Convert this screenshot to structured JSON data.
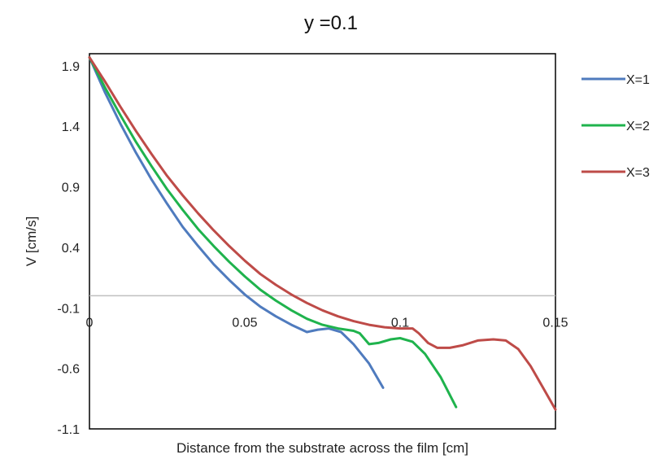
{
  "chart_data": {
    "type": "line",
    "title": "y =0.1",
    "xlabel": "Distance from the substrate across the film [cm]",
    "ylabel": "V [cm/s]",
    "xlim": [
      0,
      0.15
    ],
    "ylim": [
      -1.1,
      2.0
    ],
    "x_ticks": [
      "0",
      "0.05",
      "0.1",
      "0.15"
    ],
    "x_tick_values": [
      0,
      0.05,
      0.1,
      0.15
    ],
    "y_ticks": [
      "1.9",
      "1.4",
      "0.9",
      "0.4",
      "-0.1",
      "-0.6",
      "-1.1"
    ],
    "y_tick_values": [
      1.9,
      1.4,
      0.9,
      0.4,
      -0.1,
      -0.6,
      -1.1
    ],
    "zero_line": true,
    "grid": false,
    "legend_position": "right",
    "series": [
      {
        "name": "X=1",
        "color": "#4F7BBE",
        "points": [
          [
            0,
            1.97
          ],
          [
            0.005,
            1.68
          ],
          [
            0.01,
            1.42
          ],
          [
            0.015,
            1.18
          ],
          [
            0.02,
            0.96
          ],
          [
            0.025,
            0.76
          ],
          [
            0.03,
            0.57
          ],
          [
            0.035,
            0.41
          ],
          [
            0.04,
            0.26
          ],
          [
            0.045,
            0.13
          ],
          [
            0.05,
            0.01
          ],
          [
            0.055,
            -0.09
          ],
          [
            0.06,
            -0.17
          ],
          [
            0.065,
            -0.24
          ],
          [
            0.07,
            -0.3
          ],
          [
            0.0735,
            -0.28
          ],
          [
            0.077,
            -0.27
          ],
          [
            0.081,
            -0.3
          ],
          [
            0.085,
            -0.4
          ],
          [
            0.09,
            -0.56
          ],
          [
            0.0945,
            -0.76
          ]
        ]
      },
      {
        "name": "X=2",
        "color": "#1FB34D",
        "points": [
          [
            0,
            1.97
          ],
          [
            0.005,
            1.72
          ],
          [
            0.01,
            1.49
          ],
          [
            0.015,
            1.27
          ],
          [
            0.02,
            1.07
          ],
          [
            0.025,
            0.88
          ],
          [
            0.03,
            0.71
          ],
          [
            0.035,
            0.55
          ],
          [
            0.04,
            0.41
          ],
          [
            0.045,
            0.28
          ],
          [
            0.05,
            0.16
          ],
          [
            0.055,
            0.05
          ],
          [
            0.06,
            -0.04
          ],
          [
            0.065,
            -0.12
          ],
          [
            0.07,
            -0.19
          ],
          [
            0.075,
            -0.24
          ],
          [
            0.08,
            -0.27
          ],
          [
            0.085,
            -0.29
          ],
          [
            0.087,
            -0.31
          ],
          [
            0.09,
            -0.4
          ],
          [
            0.093,
            -0.39
          ],
          [
            0.097,
            -0.36
          ],
          [
            0.1,
            -0.35
          ],
          [
            0.104,
            -0.38
          ],
          [
            0.108,
            -0.48
          ],
          [
            0.113,
            -0.67
          ],
          [
            0.118,
            -0.92
          ]
        ]
      },
      {
        "name": "X=3",
        "color": "#BE4B48",
        "points": [
          [
            0,
            1.97
          ],
          [
            0.005,
            1.77
          ],
          [
            0.01,
            1.56
          ],
          [
            0.015,
            1.36
          ],
          [
            0.02,
            1.17
          ],
          [
            0.025,
            0.99
          ],
          [
            0.03,
            0.83
          ],
          [
            0.035,
            0.68
          ],
          [
            0.04,
            0.54
          ],
          [
            0.045,
            0.41
          ],
          [
            0.05,
            0.29
          ],
          [
            0.055,
            0.18
          ],
          [
            0.06,
            0.09
          ],
          [
            0.065,
            0.01
          ],
          [
            0.07,
            -0.06
          ],
          [
            0.075,
            -0.12
          ],
          [
            0.08,
            -0.17
          ],
          [
            0.085,
            -0.21
          ],
          [
            0.09,
            -0.24
          ],
          [
            0.095,
            -0.26
          ],
          [
            0.1,
            -0.27
          ],
          [
            0.104,
            -0.27
          ],
          [
            0.106,
            -0.31
          ],
          [
            0.109,
            -0.39
          ],
          [
            0.112,
            -0.43
          ],
          [
            0.116,
            -0.43
          ],
          [
            0.12,
            -0.41
          ],
          [
            0.125,
            -0.37
          ],
          [
            0.13,
            -0.36
          ],
          [
            0.134,
            -0.37
          ],
          [
            0.138,
            -0.44
          ],
          [
            0.142,
            -0.58
          ],
          [
            0.146,
            -0.76
          ],
          [
            0.15,
            -0.94
          ]
        ]
      }
    ]
  }
}
